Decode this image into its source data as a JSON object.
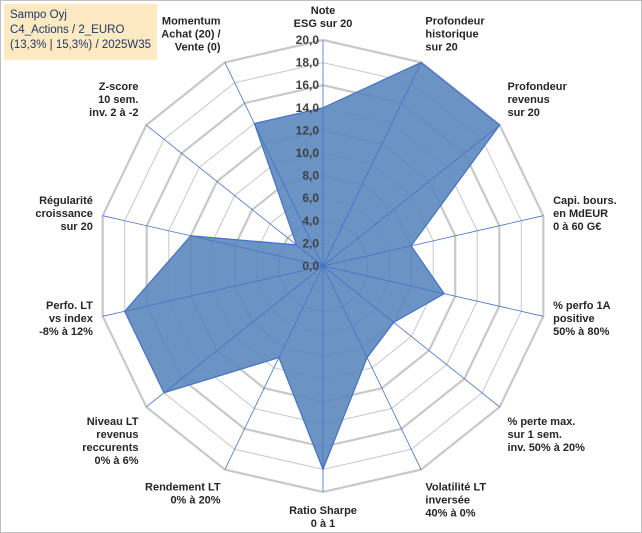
{
  "title_box": {
    "line1": "Sampo Oyj",
    "line2": "C4_Actions / 2_EURO",
    "line3": "(13,3% | 15,3%) / 2025W35"
  },
  "colors": {
    "fill": "#5b87be",
    "stroke": "#4472c4",
    "grid": "#c8c8c8",
    "axis": "#4472c4",
    "title_bg": "#fde9c2"
  },
  "chart_data": {
    "type": "radar",
    "rlim": [
      0,
      20
    ],
    "grid": true,
    "ticks": [
      "0,0",
      "2,0",
      "4,0",
      "6,0",
      "8,0",
      "10,0",
      "12,0",
      "14,0",
      "16,0",
      "18,0",
      "20,0"
    ],
    "categories": [
      "Note\nESG sur 20",
      "Profondeur\nhistorique\nsur 20",
      "Profondeur\nrevenus\nsur 20",
      "Capi. bours.\nen MdEUR\n0 à 60 G€",
      "% perfo 1A\npositive\n50% à 80%",
      "% perte max.\nsur 1 sem.\ninv. 50% à 20%",
      "Volatilité LT\ninversée\n40% à 0%",
      "Ratio Sharpe\n0 à 1",
      "Rendement LT\n0% à 20%",
      "Niveau LT\nrevenus\nreccurents\n0% à 6%",
      "Perfo. LT\nvs index\n-8% à 12%",
      "Régularité\ncroissance\nsur 20",
      "Z-score\n10 sem.\ninv. 2 à -2",
      "Momentum\nAchat (20) /\nVente (0)"
    ],
    "values": [
      14.0,
      20.0,
      20.0,
      8.0,
      11.0,
      8.0,
      9.0,
      18.0,
      9.0,
      18.0,
      18.0,
      12.0,
      3.0,
      14.0
    ]
  }
}
